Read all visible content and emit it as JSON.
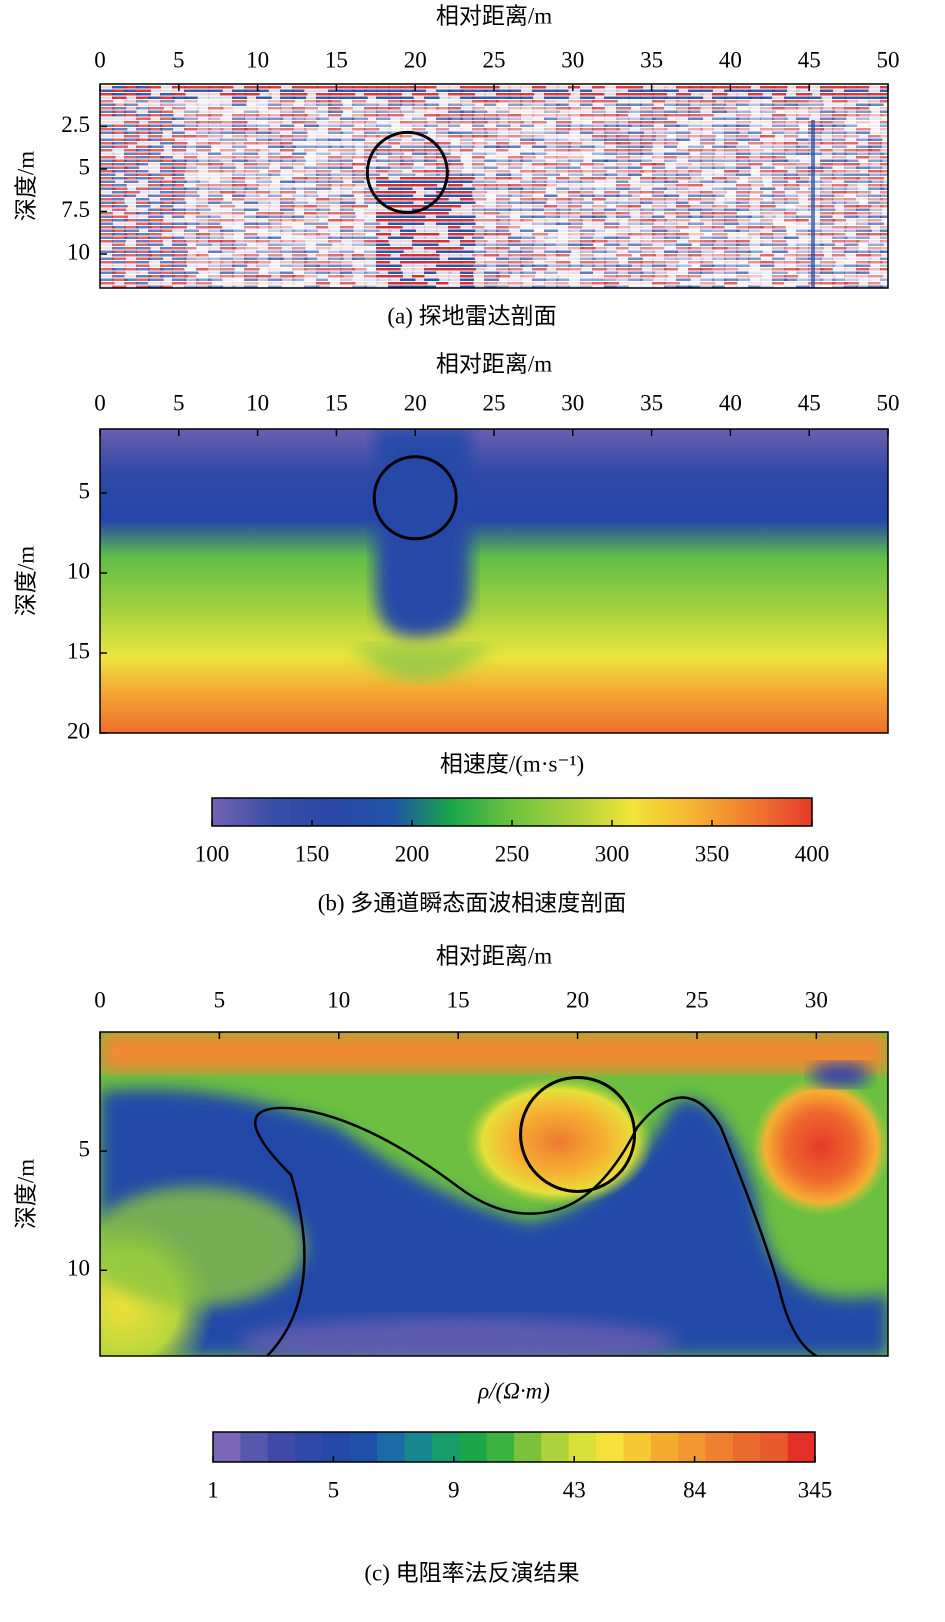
{
  "chart_data": [
    {
      "type": "heatmap",
      "xlabel": "相对距离/m",
      "ylabel": "深度/m",
      "caption": "(a) 探地雷达剖面",
      "xlim": [
        0,
        50
      ],
      "xticks": [
        0,
        5,
        10,
        15,
        20,
        25,
        30,
        35,
        40,
        45,
        50
      ],
      "ylim": [
        0,
        12
      ],
      "yticks": [
        2.5,
        5,
        7.5,
        10
      ]
    },
    {
      "type": "heatmap",
      "xlabel": "相对距离/m",
      "ylabel": "深度/m",
      "caption": "(b) 多通道瞬态面波相速度剖面",
      "xlim": [
        0,
        50
      ],
      "xticks": [
        0,
        5,
        10,
        15,
        20,
        25,
        30,
        35,
        40,
        45,
        50
      ],
      "ylim": [
        1,
        20
      ],
      "yticks": [
        5,
        10,
        15,
        20
      ],
      "colorbar_label": "相速度/(m·s⁻¹)",
      "colorbar_lim": [
        100,
        400
      ],
      "colorbar_ticks": [
        100,
        150,
        200,
        250,
        300,
        350,
        400
      ],
      "colormap": [
        "#7363b3",
        "#3a4ea6",
        "#2a46a6",
        "#1f54a8",
        "#1aa64a",
        "#6ec33e",
        "#a9d03c",
        "#f2e43a",
        "#f6b431",
        "#f07a30",
        "#e63a2a"
      ]
    },
    {
      "type": "heatmap",
      "xlabel": "相对距离/m",
      "ylabel": "深度/m",
      "caption": "(c) 电阻率法反演结果",
      "xlim": [
        0,
        33
      ],
      "xticks": [
        0,
        5,
        10,
        15,
        20,
        25,
        30
      ],
      "ylim": [
        0,
        13.6
      ],
      "yticks": [
        5,
        10
      ],
      "colorbar_label": "ρ/(Ω·m)",
      "colorbar_ticks": [
        1,
        5,
        9,
        43,
        84,
        345
      ],
      "colormap": [
        "#7a68b6",
        "#5757ad",
        "#3f4aa8",
        "#2f48a8",
        "#2448a8",
        "#1f50a8",
        "#1c6aa6",
        "#17878f",
        "#159c6a",
        "#1ca64c",
        "#3cb340",
        "#7cc13c",
        "#aed23a",
        "#d9e03a",
        "#f4e23a",
        "#f6c832",
        "#f5ac2e",
        "#f29630",
        "#ee8030",
        "#ea6a2e",
        "#e85a2c",
        "#e43028"
      ]
    }
  ]
}
